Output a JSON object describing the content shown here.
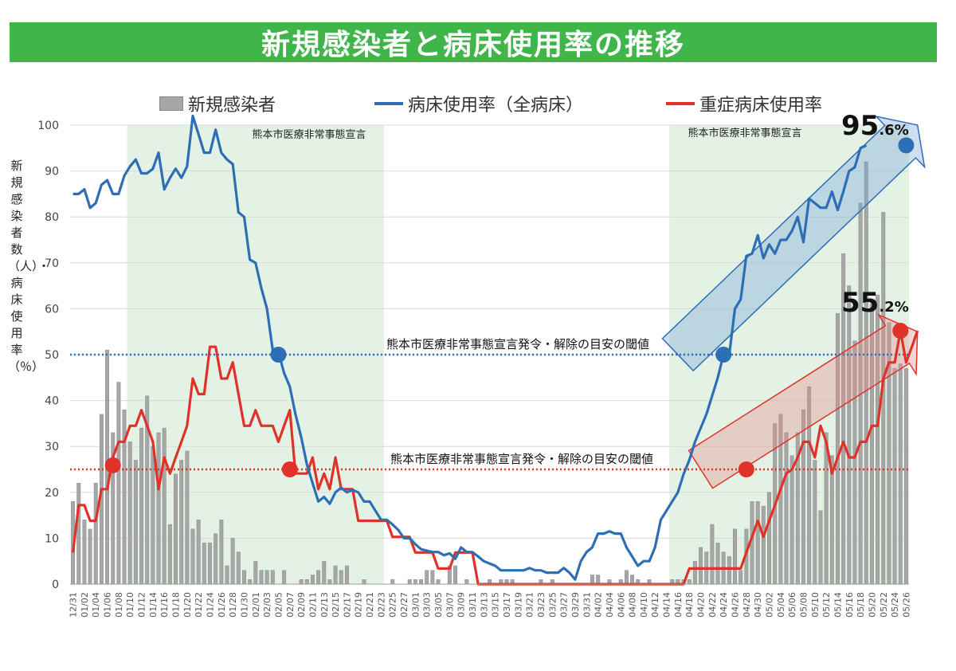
{
  "title": "新規感染者と病床使用率の推移",
  "legend": {
    "cases": "新規感染者",
    "bed_rate": "病床使用率（全病床）",
    "severe_rate": "重症病床使用率"
  },
  "ylabel": "新規感染者数（人）・病床使用率（％）",
  "annotations": {
    "emergency_1": "熊本市医療非常事態宣言",
    "emergency_2": "熊本市医療非常事態宣言",
    "threshold_50": "熊本市医療非常事態宣言発令・解除の目安の閾値",
    "threshold_25": "熊本市医療非常事態宣言発令・解除の目安の閾値",
    "bed_final": {
      "int": "95",
      "dec": ".6%"
    },
    "severe_final": {
      "int": "55",
      "dec": ".2%"
    }
  },
  "colors": {
    "title_bg": "#3fb54a",
    "bars": "#a6a6a6",
    "bed_line": "#2e6eb5",
    "severe_line": "#e03228",
    "shade": "#e4f2e6",
    "threshold_50": "#2e6eb5",
    "threshold_25": "#e03228"
  },
  "chart_data": {
    "type": "bar+line",
    "title": "新規感染者と病床使用率の推移",
    "ylabel": "新規感染者数（人）・病床使用率（％）",
    "ylim": [
      0,
      100
    ],
    "yticks": [
      0,
      10,
      20,
      30,
      40,
      50,
      60,
      70,
      80,
      90,
      100
    ],
    "x_start": "12/31",
    "num_days": 147,
    "xtick_labels": [
      "12/31",
      "01/02",
      "01/04",
      "01/06",
      "01/08",
      "01/10",
      "01/12",
      "01/14",
      "01/16",
      "01/18",
      "01/20",
      "01/22",
      "01/24",
      "01/26",
      "01/28",
      "01/30",
      "02/01",
      "02/03",
      "02/05",
      "02/07",
      "02/09",
      "02/11",
      "02/13",
      "02/15",
      "02/17",
      "02/19",
      "02/21",
      "02/23",
      "02/25",
      "02/27",
      "03/01",
      "03/03",
      "03/05",
      "03/07",
      "03/09",
      "03/11",
      "03/13",
      "03/15",
      "03/17",
      "03/19",
      "03/21",
      "03/23",
      "03/25",
      "03/27",
      "03/29",
      "03/31",
      "04/02",
      "04/04",
      "04/06",
      "04/08",
      "04/10",
      "04/12",
      "04/14",
      "04/16",
      "04/18",
      "04/20",
      "04/22",
      "04/24",
      "04/26",
      "04/28",
      "04/30",
      "05/02",
      "05/04",
      "05/06",
      "05/08",
      "05/10",
      "05/12",
      "05/14",
      "05/16",
      "05/18",
      "05/20",
      "05/22",
      "05/24",
      "05/26"
    ],
    "shaded_ranges": [
      [
        10,
        54
      ],
      [
        105,
        146
      ]
    ],
    "thresholds": [
      50,
      25
    ],
    "series": [
      {
        "name": "新規感染者",
        "type": "bar",
        "values": [
          18,
          22,
          14,
          12,
          22,
          37,
          51,
          33,
          44,
          38,
          31,
          27,
          34,
          41,
          30,
          33,
          34,
          13,
          24,
          27,
          29,
          12,
          14,
          9,
          9,
          11,
          14,
          4,
          10,
          7,
          3,
          1,
          5,
          3,
          3,
          3,
          0,
          3,
          0,
          0,
          1,
          1,
          2,
          3,
          5,
          1,
          4,
          3,
          4,
          0,
          0,
          1,
          0,
          0,
          0,
          0,
          1,
          0,
          0,
          1,
          1,
          1,
          3,
          3,
          1,
          0,
          4,
          4,
          0,
          1,
          0,
          0,
          0,
          1,
          0,
          1,
          1,
          1,
          0,
          0,
          0,
          0,
          1,
          0,
          1,
          0,
          0,
          0,
          0,
          0,
          0,
          2,
          2,
          0,
          1,
          0,
          1,
          3,
          2,
          1,
          0,
          1,
          0,
          0,
          0,
          1,
          1,
          1,
          1,
          5,
          8,
          7,
          13,
          9,
          7,
          6,
          12,
          3,
          12,
          18,
          18,
          17,
          20,
          35,
          37,
          33,
          28,
          33,
          38,
          43,
          27,
          16,
          33,
          28,
          59,
          72,
          65,
          53,
          83,
          92,
          61,
          63,
          81,
          57,
          47,
          48,
          47
        ]
      },
      {
        "name": "病床使用率（全病床）",
        "type": "line",
        "values": [
          85,
          85,
          86,
          82,
          83,
          87,
          88,
          85,
          85,
          89,
          91,
          92.5,
          89.5,
          89.5,
          90.5,
          94,
          86,
          88.5,
          90.5,
          88.5,
          91,
          102,
          98,
          94,
          94,
          99,
          94,
          92.5,
          91.5,
          81,
          80,
          70.7,
          70,
          64.5,
          60,
          51,
          50.5,
          46,
          43,
          37,
          32,
          26,
          22,
          18,
          19,
          17.5,
          20,
          21,
          20,
          20.5,
          20,
          18,
          18,
          16,
          14,
          14,
          13,
          11.8,
          10,
          10,
          8.7,
          7.6,
          7.3,
          7,
          7,
          6.3,
          6.7,
          5.5,
          8,
          7,
          7,
          6,
          5,
          4.5,
          4,
          3,
          3,
          3,
          3,
          3,
          3.5,
          3,
          3,
          2.5,
          2.5,
          2.5,
          3.5,
          2.5,
          1,
          5,
          7,
          8,
          11,
          11,
          11.5,
          11,
          11,
          8,
          6,
          4,
          5,
          5,
          8,
          14,
          16,
          18,
          20,
          24,
          27,
          31,
          34,
          37,
          41,
          45,
          50,
          50,
          60,
          62,
          71.5,
          72,
          76,
          71,
          74,
          72,
          75,
          75,
          77,
          80,
          74.5,
          84,
          83,
          82,
          82,
          85.5,
          81.5,
          85.5,
          90,
          90.8,
          95,
          95.6
        ]
      },
      {
        "name": "重症病床使用率",
        "type": "line",
        "values": [
          6.9,
          17.2,
          17.2,
          13.8,
          13.8,
          20.7,
          20.7,
          27.6,
          31,
          31,
          34.5,
          34.5,
          37.9,
          34.5,
          31,
          20.7,
          27.6,
          24.1,
          27.6,
          31,
          34.5,
          44.8,
          41.4,
          41.4,
          51.7,
          51.7,
          44.8,
          44.8,
          48.3,
          41.4,
          34.5,
          34.5,
          37.9,
          34.5,
          34.5,
          34.5,
          31,
          34.5,
          37.9,
          24.1,
          24.1,
          24.1,
          27.6,
          20.7,
          24.1,
          20.7,
          27.6,
          20.7,
          20.7,
          20.7,
          13.8,
          13.8,
          13.8,
          13.8,
          13.8,
          13.8,
          10.3,
          10.3,
          10.3,
          10.3,
          6.9,
          6.9,
          6.9,
          6.9,
          3.4,
          3.4,
          3.4,
          6.9,
          6.9,
          6.9,
          6.9,
          0,
          0,
          0,
          0,
          0,
          0,
          0,
          0,
          0,
          0,
          0,
          0,
          0,
          0,
          0,
          0,
          0,
          0,
          0,
          0,
          0,
          0,
          0,
          0,
          0,
          0,
          0,
          0,
          0,
          0,
          0,
          0,
          0,
          0,
          0,
          0,
          0,
          3.4,
          3.4,
          3.4,
          3.4,
          3.4,
          3.4,
          3.4,
          3.4,
          3.4,
          3.4,
          6.9,
          10.3,
          13.8,
          10.3,
          13.8,
          17.2,
          20.7,
          24.1,
          25,
          27.6,
          31,
          31,
          27.6,
          34.5,
          31,
          24.1,
          27.6,
          31,
          27.6,
          27.6,
          31,
          31,
          34.5,
          34.5,
          44.8,
          48.3,
          48.3,
          55.2,
          48.3,
          51.7,
          55.2
        ]
      }
    ],
    "markers": {
      "bed": [
        [
          36,
          50
        ],
        [
          114,
          50
        ],
        [
          146,
          95.6
        ]
      ],
      "severe": [
        [
          7,
          25.9
        ],
        [
          38,
          25
        ],
        [
          118,
          25
        ],
        [
          145,
          55.2
        ]
      ]
    },
    "arrows": [
      {
        "series": "bed",
        "from": [
          106,
          50
        ],
        "to": [
          148,
          100
        ]
      },
      {
        "series": "severe",
        "from": [
          110,
          25
        ],
        "to": [
          148,
          55
        ]
      }
    ]
  }
}
